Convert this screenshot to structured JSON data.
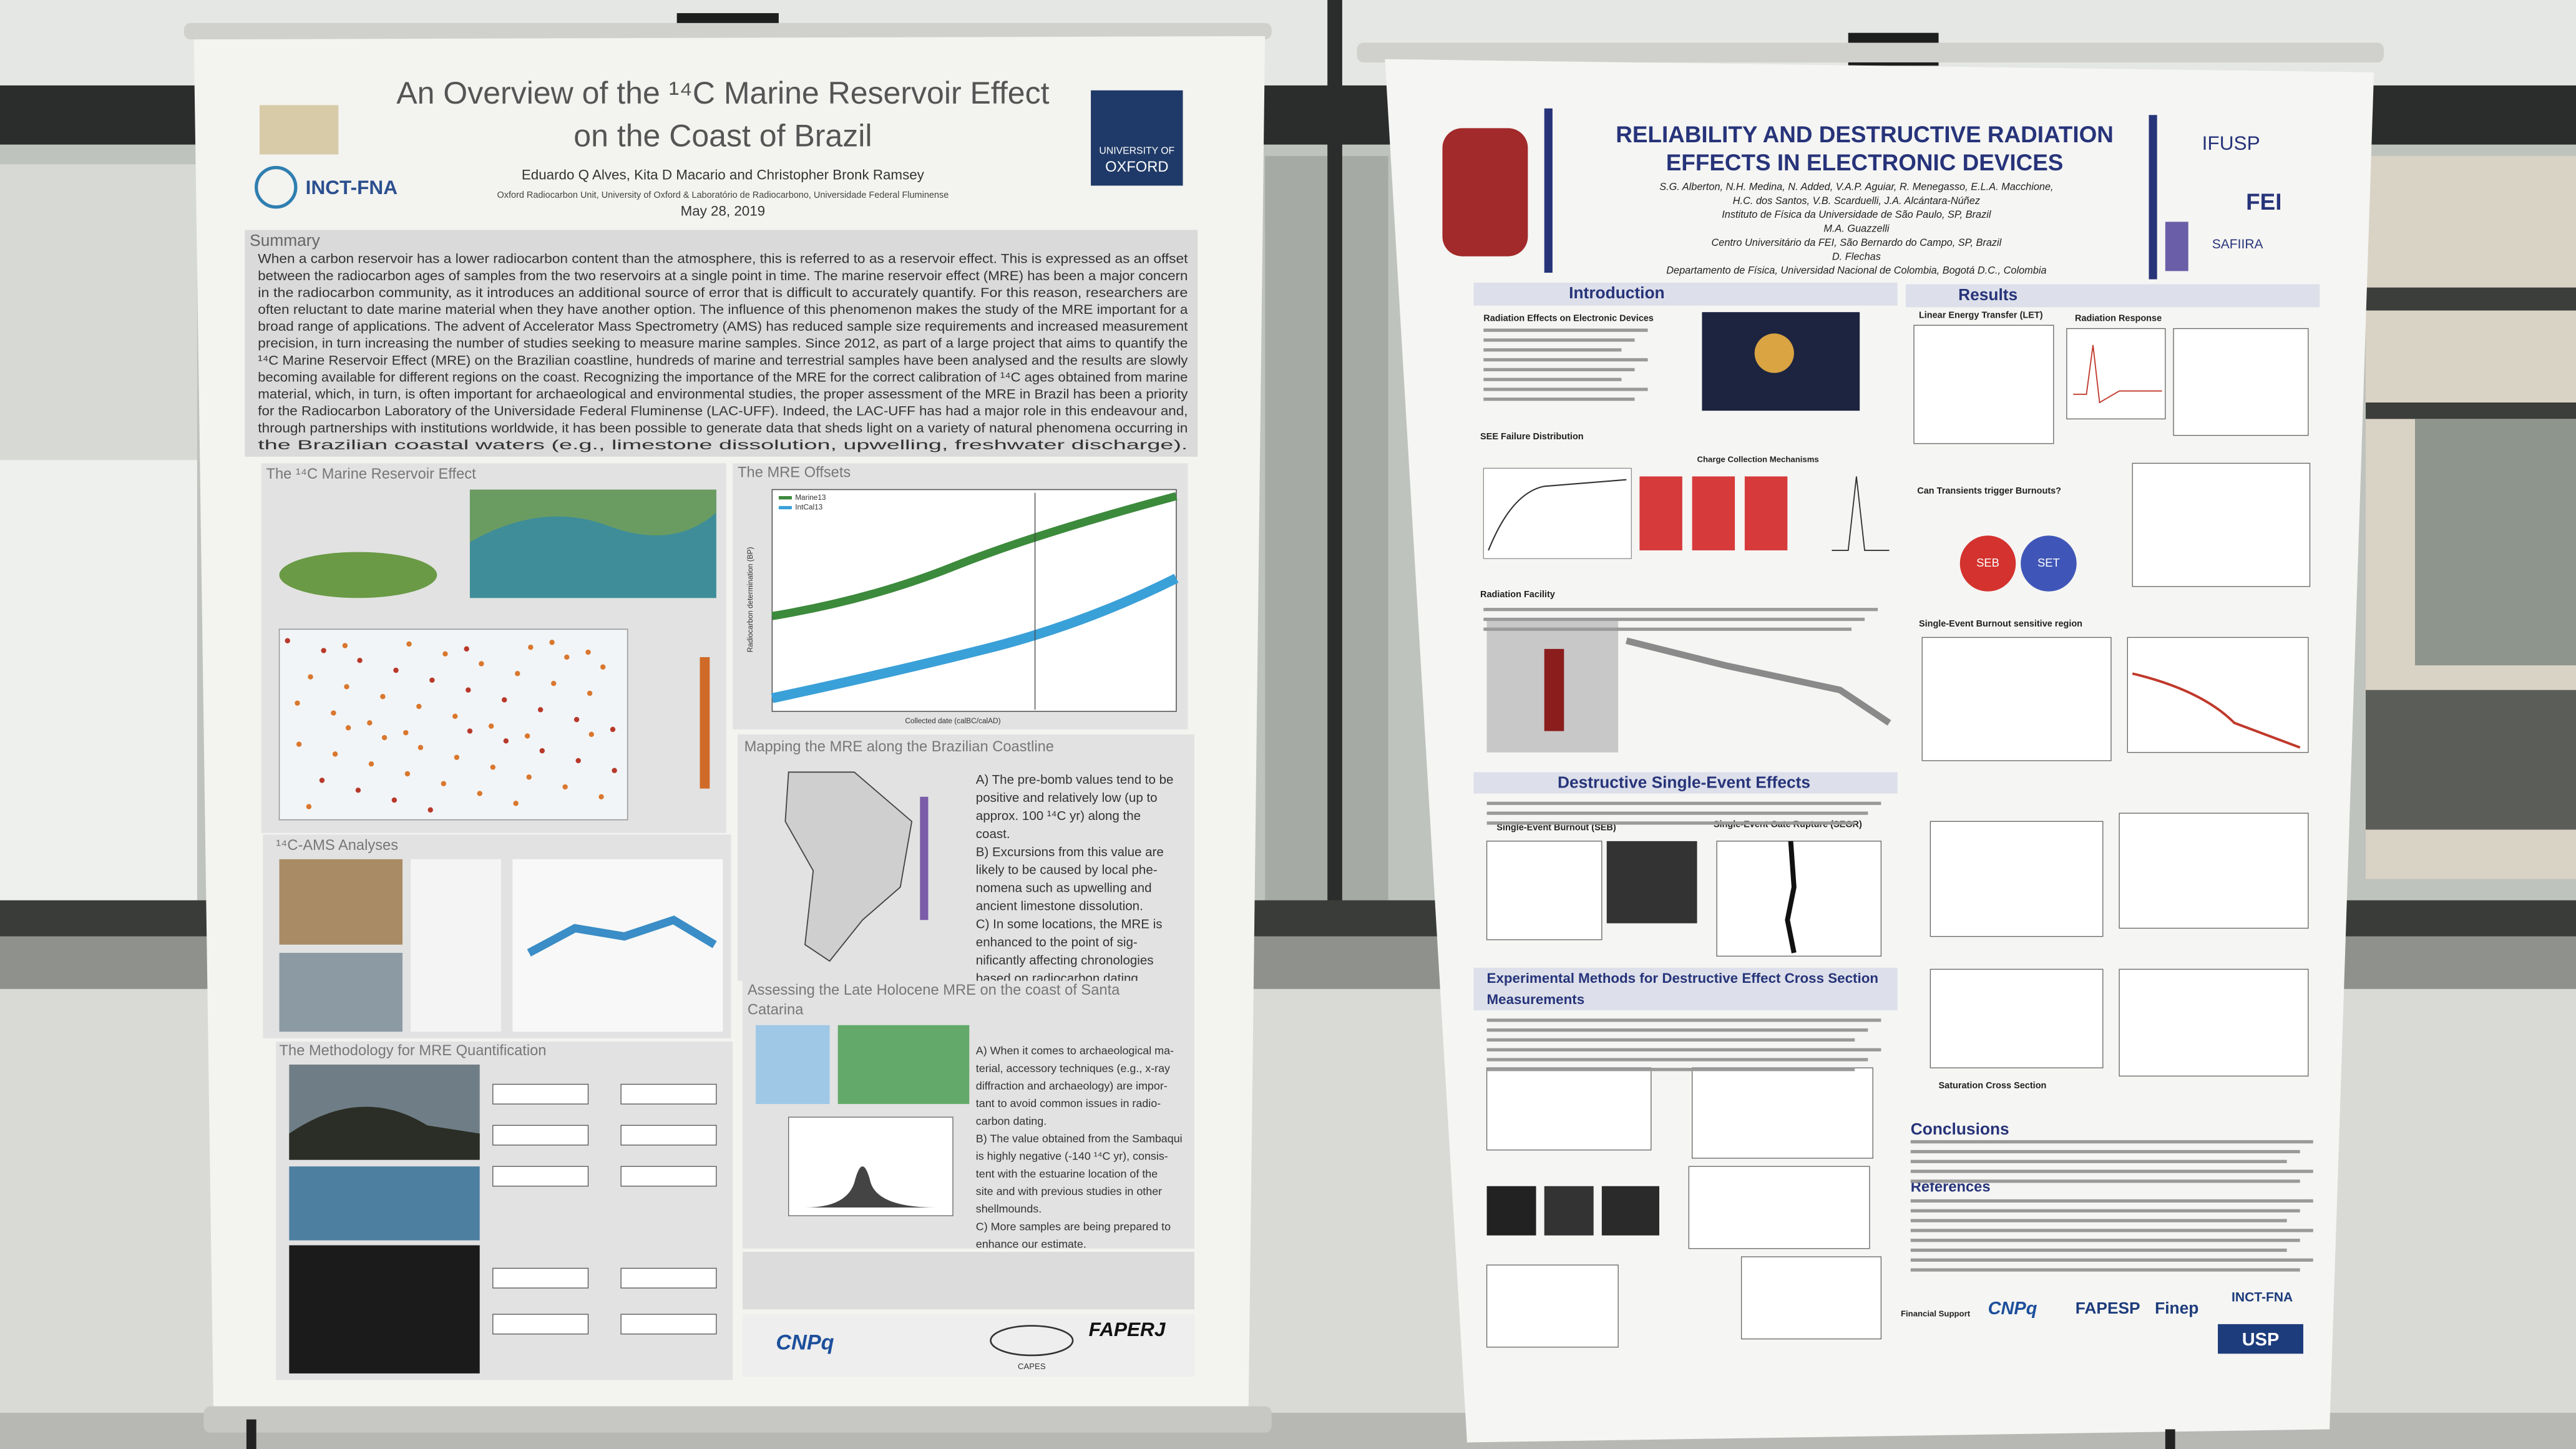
{
  "left_poster": {
    "title": [
      "An Overview of the ¹⁴C Marine Reservoir Effect",
      "on the Coast of Brazil"
    ],
    "authors": "Eduardo Q Alves, Kita D Macario and Christopher Bronk Ramsey",
    "affiliation": "Oxford Radiocarbon Unit, University of Oxford & Laboratório de Radiocarbono, Universidade Federal Fluminense",
    "date": "May 28, 2019",
    "logos": [
      "INCT-FNA",
      "UNIVERSITY OF",
      "OXFORD",
      "CNPq",
      "CAPES",
      "FAPERJ"
    ],
    "summary": {
      "heading": "Summary",
      "lines": [
        "When a carbon reservoir has a lower radiocarbon content than the atmosphere, this is referred to as a reservoir effect. This is expressed as an offset",
        "between the radiocarbon ages of samples from the two reservoirs at a single point in time. The marine reservoir effect (MRE) has been a major concern",
        "in the radiocarbon community, as it introduces an additional source of error that is difficult to accurately quantify. For this reason, researchers are",
        "often reluctant to date marine material when they have another option. The influence of this phenomenon makes the study of the MRE important for a",
        "broad range of applications. The advent of Accelerator Mass Spectrometry (AMS) has reduced sample size requirements and increased measurement",
        "precision, in turn increasing the number of studies seeking to measure marine samples. Since 2012, as part of a large project that aims to quantify the",
        "¹⁴C Marine Reservoir Effect (MRE) on the Brazilian coastline, hundreds of marine and terrestrial samples have been analysed and the results are slowly",
        "becoming available for different regions on the coast. Recognizing the importance of the MRE for the correct calibration of ¹⁴C ages obtained from marine",
        "material, which, in turn, is often important for archaeological and environmental studies, the proper assessment of the MRE in Brazil has been a priority",
        "for the Radiocarbon Laboratory of the Universidade Federal Fluminense (LAC-UFF). Indeed, the LAC-UFF has had a major role in this endeavour and,",
        "through partnerships with institutions worldwide, it has been possible to generate data that sheds light on a variety of natural phenomena occurring in",
        "the Brazilian coastal waters (e.g., limestone dissolution, upwelling, freshwater discharge)."
      ]
    },
    "sections": {
      "reservoir_effect": "The ¹⁴C Marine Reservoir Effect",
      "offsets": "The MRE Offsets",
      "ams": "¹⁴C-AMS Analyses",
      "mapping": "Mapping the MRE along the Brazilian Coastline",
      "methodology": "The Methodology for MRE Quantification",
      "santa_catarina": [
        "Assessing the Late Holocene MRE on the coast of Santa",
        "Catarina"
      ]
    },
    "offsets_chart": {
      "x_label": "Collected date (calBC/calAD)",
      "y_label": "Radiocarbon determination (BP)",
      "legend": [
        "Marine13",
        "IntCal13"
      ]
    },
    "mapping_items": [
      "A)  The pre-bomb values tend to be",
      "positive and relatively low (up to",
      "approx. 100 ¹⁴C yr) along the",
      "coast.",
      "B)  Excursions from this value are",
      "likely to be caused by local phe-",
      "nomena such as upwelling and",
      "ancient limestone dissolution.",
      "C)  In some locations, the MRE is",
      "enhanced to the point of sig-",
      "nificantly affecting chronologies",
      "based on radiocarbon dating."
    ],
    "santa_catarina_items": [
      "A)  When it comes to archaeological ma-",
      "terial, accessory techniques (e.g., x-ray",
      "diffraction and archaeology) are impor-",
      "tant to avoid common issues in radio-",
      "carbon dating.",
      "B)  The value obtained from the Sambaqui",
      "is highly negative (-140 ¹⁴C yr), consis-",
      "tent with the estuarine location of the",
      "site and with previous studies in other",
      "shellmounds.",
      "C)  More samples are being prepared to",
      "enhance our estimate."
    ]
  },
  "right_poster": {
    "title": [
      "RELIABILITY AND DESTRUCTIVE RADIATION",
      "EFFECTS IN ELECTRONIC DEVICES"
    ],
    "authors": [
      "S.G. Alberton, N.H. Medina, N. Added, V.A.P. Aguiar, R. Menegasso, E.L.A. Macchione,",
      "H.C. dos Santos, V.B. Scarduelli, J.A. Alcántara-Núñez",
      "Instituto de Física da Universidade de São Paulo, SP, Brazil",
      "M.A. Guazzelli",
      "Centro Universitário da FEI, São Bernardo do Campo, SP, Brazil",
      "D. Flechas",
      "Departamento de Física, Universidad Nacional de Colombia, Bogotá D.C., Colombia"
    ],
    "logos": [
      "IFUSP",
      "FEI",
      "SAFIIRA",
      "USP",
      "CNPq",
      "FAPESP",
      "Finep",
      "INCT-FNA"
    ],
    "sections": {
      "introduction": "Introduction",
      "results": "Results",
      "destructive": "Destructive Single-Event Effects",
      "methods": [
        "Experimental Methods for Destructive Effect Cross Section",
        "Measurements"
      ],
      "conclusions": "Conclusions",
      "references": "References"
    },
    "subheadings": {
      "radiation_effects": "Radiation Effects on Electronic Devices",
      "failure_distribution": "SEE Failure Distribution",
      "charge_collection": "Charge Collection Mechanisms",
      "facility": "Radiation Facility",
      "seb": "Single-Event Burnout (SEB)",
      "segr": "Single-Event Gate Rupture (SEGR)",
      "let": "Linear Energy Transfer (LET)",
      "response": "Radiation Response",
      "transients": "Can Transients trigger Burnouts?",
      "sensitive_region": "Single-Event Burnout sensitive region",
      "saturation": "Saturation Cross Section",
      "support": "Financial Support"
    },
    "circles": [
      "SEB",
      "SET"
    ]
  }
}
